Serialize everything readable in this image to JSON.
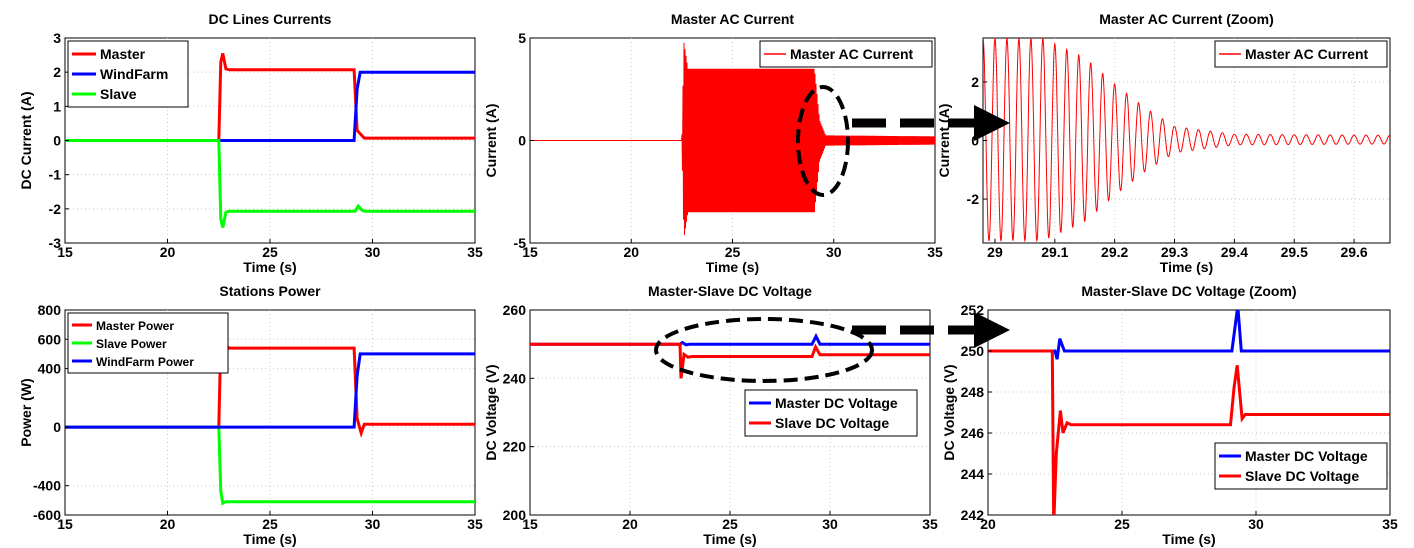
{
  "chart_data": [
    {
      "id": "dc_lines_currents",
      "type": "line",
      "title": "DC Lines Currents",
      "xlabel": "Time (s)",
      "ylabel": "DC Current (A)",
      "xlim": [
        15,
        35
      ],
      "ylim": [
        -3,
        3
      ],
      "xticks": [
        15,
        20,
        25,
        30,
        35
      ],
      "yticks": [
        -3,
        -2,
        -1,
        0,
        1,
        2,
        3
      ],
      "grid": true,
      "legend_position": "top-left",
      "series": [
        {
          "name": "Master",
          "color": "#ff0000",
          "x": [
            15,
            22.5,
            22.6,
            22.7,
            22.85,
            23,
            29.1,
            29.25,
            29.4,
            29.6,
            35
          ],
          "y": [
            0,
            0,
            2.3,
            2.55,
            2.1,
            2.07,
            2.07,
            0.3,
            0.2,
            0.07,
            0.07
          ]
        },
        {
          "name": "WindFarm",
          "color": "#0000ff",
          "x": [
            15,
            29.1,
            29.25,
            29.4,
            35
          ],
          "y": [
            0,
            0,
            1.5,
            2.0,
            2.0
          ]
        },
        {
          "name": "Slave",
          "color": "#00ff00",
          "x": [
            15,
            22.5,
            22.6,
            22.7,
            22.85,
            23,
            29.15,
            29.3,
            29.45,
            29.6,
            35
          ],
          "y": [
            0,
            0,
            -2.3,
            -2.55,
            -2.1,
            -2.07,
            -2.07,
            -1.92,
            -2.02,
            -2.07,
            -2.07
          ]
        }
      ]
    },
    {
      "id": "master_ac_current",
      "type": "line",
      "title": "Master AC Current",
      "xlabel": "Time (s)",
      "ylabel": "Current (A)",
      "xlim": [
        15,
        35
      ],
      "ylim": [
        -5,
        5
      ],
      "xticks": [
        15,
        20,
        25,
        30,
        35
      ],
      "yticks": [
        -5,
        0,
        5
      ],
      "grid": true,
      "legend_position": "top-right",
      "series": [
        {
          "name": "Master AC Current",
          "color": "#ff0000",
          "style": "oscillating envelope",
          "x": [
            15,
            22.5,
            22.6,
            22.8,
            29.05,
            29.3,
            29.6,
            35
          ],
          "y_amplitude": [
            0,
            0,
            4.8,
            3.5,
            3.5,
            1.0,
            0.25,
            0.2
          ]
        }
      ]
    },
    {
      "id": "master_ac_current_zoom",
      "type": "line",
      "title": "Master AC Current (Zoom)",
      "xlabel": "Time (s)",
      "ylabel": "Current (A)",
      "xlim": [
        28.98,
        29.66
      ],
      "ylim": [
        -3.5,
        3.5
      ],
      "xticks": [
        29,
        29.1,
        29.2,
        29.3,
        29.4,
        29.5,
        29.6
      ],
      "yticks": [
        -2,
        0,
        2
      ],
      "grid": true,
      "legend_position": "top-right",
      "series": [
        {
          "name": "Master AC Current",
          "color": "#ff0000",
          "style": "damped sinusoid",
          "frequency_hz": 50,
          "offset": 0.03,
          "x": [
            28.98,
            29.08,
            29.15,
            29.2,
            29.25,
            29.3,
            29.4,
            29.66
          ],
          "y_amplitude": [
            3.45,
            3.45,
            2.8,
            1.9,
            1.1,
            0.45,
            0.18,
            0.15
          ]
        }
      ]
    },
    {
      "id": "stations_power",
      "type": "line",
      "title": "Stations Power",
      "xlabel": "Time (s)",
      "ylabel": "Power (W)",
      "xlim": [
        15,
        35
      ],
      "ylim": [
        -600,
        800
      ],
      "xticks": [
        15,
        20,
        25,
        30,
        35
      ],
      "yticks": [
        -600,
        -400,
        0,
        400,
        600,
        800
      ],
      "grid": true,
      "legend_position": "top-left",
      "series": [
        {
          "name": "Master Power",
          "color": "#ff0000",
          "x": [
            15,
            22.5,
            22.6,
            22.7,
            22.85,
            23,
            29.1,
            29.25,
            29.45,
            29.6,
            35
          ],
          "y": [
            0,
            0,
            600,
            720,
            560,
            540,
            540,
            60,
            -40,
            20,
            20
          ]
        },
        {
          "name": "Slave Power",
          "color": "#00ff00",
          "x": [
            15,
            22.5,
            22.6,
            22.7,
            22.85,
            23,
            35
          ],
          "y": [
            0,
            0,
            -440,
            -520,
            -510,
            -510,
            -510
          ]
        },
        {
          "name": "WindFarm Power",
          "color": "#0000ff",
          "x": [
            15,
            29.1,
            29.25,
            29.4,
            35
          ],
          "y": [
            0,
            0,
            350,
            500,
            500
          ]
        }
      ]
    },
    {
      "id": "master_slave_dc_voltage",
      "type": "line",
      "title": "Master-Slave DC Voltage",
      "xlabel": "Time (s)",
      "ylabel": "DC Voltage (V)",
      "xlim": [
        15,
        35
      ],
      "ylim": [
        200,
        260
      ],
      "xticks": [
        15,
        20,
        25,
        30,
        35
      ],
      "yticks": [
        200,
        220,
        240,
        260
      ],
      "grid": true,
      "legend_position": "center-right",
      "series": [
        {
          "name": "Master DC Voltage",
          "color": "#0000ff",
          "x": [
            15,
            22.5,
            22.62,
            22.8,
            23,
            29.1,
            29.3,
            29.5,
            35
          ],
          "y": [
            250,
            250,
            250.5,
            249.8,
            250,
            250,
            252.3,
            250,
            250
          ]
        },
        {
          "name": "Slave DC Voltage",
          "color": "#ff0000",
          "x": [
            15,
            22.5,
            22.55,
            22.7,
            22.9,
            23.1,
            29.1,
            29.28,
            29.5,
            35
          ],
          "y": [
            250,
            250,
            240,
            247,
            246.2,
            246.4,
            246.4,
            249.2,
            246.9,
            246.9
          ]
        }
      ]
    },
    {
      "id": "master_slave_dc_voltage_zoom",
      "type": "line",
      "title": "Master-Slave DC Voltage (Zoom)",
      "xlabel": "Time (s)",
      "ylabel": "DC Voltage (V)",
      "xlim": [
        20,
        35
      ],
      "ylim": [
        242,
        252
      ],
      "xticks": [
        20,
        25,
        30,
        35
      ],
      "yticks": [
        242,
        244,
        246,
        248,
        250,
        252
      ],
      "grid": true,
      "legend_position": "bottom-right",
      "series": [
        {
          "name": "Master DC Voltage",
          "color": "#0000ff",
          "x": [
            20,
            22.5,
            22.58,
            22.68,
            22.85,
            23.0,
            29.1,
            29.22,
            29.32,
            29.45,
            29.55,
            35
          ],
          "y": [
            250,
            250,
            249.6,
            250.6,
            250.0,
            250.0,
            250.0,
            251.2,
            252.2,
            250.0,
            250.0,
            250.0
          ]
        },
        {
          "name": "Slave DC Voltage",
          "color": "#ff0000",
          "x": [
            20,
            22.4,
            22.45,
            22.55,
            22.7,
            22.8,
            22.95,
            23.1,
            29.05,
            29.18,
            29.3,
            29.48,
            29.6,
            35
          ],
          "y": [
            250,
            250,
            241.5,
            245.0,
            247.1,
            246.0,
            246.5,
            246.4,
            246.4,
            248.2,
            249.3,
            246.7,
            246.9,
            246.9
          ]
        }
      ]
    }
  ]
}
